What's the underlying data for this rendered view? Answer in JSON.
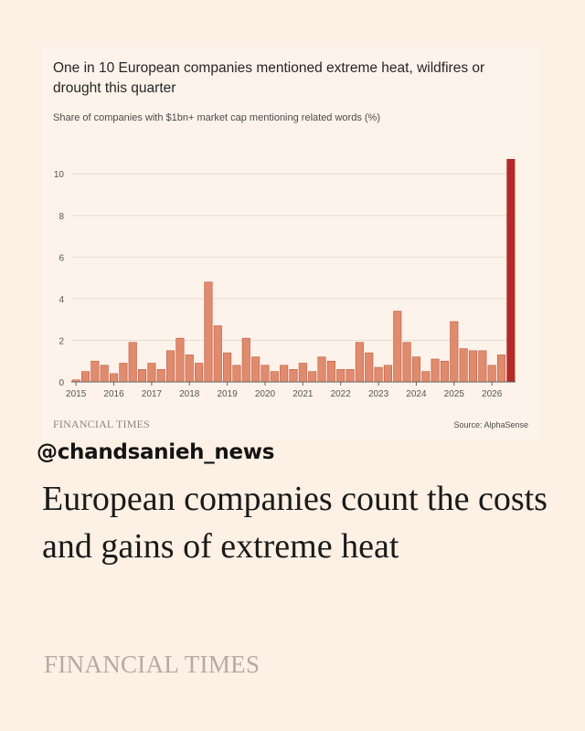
{
  "chart_data": {
    "type": "bar",
    "title": "One in 10 European companies mentioned extreme heat, wildfires or drought this quarter",
    "subtitle": "Share of companies with $1bn+ market cap mentioning related words (%)",
    "ylim": [
      0,
      10.8
    ],
    "yticks": [
      0,
      2,
      4,
      6,
      8,
      10
    ],
    "x_tick_labels": [
      "2015",
      "2016",
      "2017",
      "2018",
      "2019",
      "2020",
      "2021",
      "2022",
      "2023",
      "2024",
      "2025",
      "2026"
    ],
    "grid": true,
    "colors": {
      "bar": "#e08a6e",
      "bar_edge": "#c05a40",
      "highlight": "#b42a28"
    },
    "values": [
      0.1,
      0.5,
      1.0,
      0.8,
      0.4,
      0.9,
      1.9,
      0.6,
      0.9,
      0.6,
      1.5,
      2.1,
      1.3,
      0.9,
      4.8,
      2.7,
      1.4,
      0.8,
      2.1,
      1.2,
      0.8,
      0.5,
      0.8,
      0.6,
      0.9,
      0.5,
      1.2,
      1.0,
      0.6,
      0.6,
      1.9,
      1.4,
      0.7,
      0.8,
      3.4,
      1.9,
      1.2,
      0.5,
      1.1,
      1.0,
      2.9,
      1.6,
      1.5,
      1.5,
      0.8,
      1.3,
      10.7
    ],
    "highlight_last": true
  },
  "footer": {
    "brand": "FINANCIAL TIMES",
    "source": "Source: AlphaSense"
  },
  "handle": "@chandsanieh_news",
  "headline": "European companies count the costs and gains of extreme heat",
  "brand_large": "FINANCIAL TIMES"
}
